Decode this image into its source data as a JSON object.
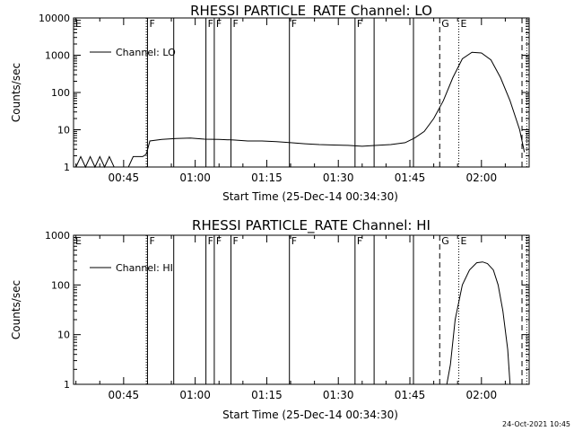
{
  "footer_timestamp": "24-Oct-2021 10:45",
  "colors": {
    "background": "#ffffff",
    "foreground": "#000000"
  },
  "chart_data": [
    {
      "type": "line",
      "title": "RHESSI PARTICLE_RATE Channel: LO",
      "xlabel": "Start Time (25-Dec-14 00:34:30)",
      "ylabel": "Counts/sec",
      "y_scale": "log",
      "ylim": [
        1,
        10000
      ],
      "xlim": [
        "00:34:30",
        "02:10:00"
      ],
      "xticks": [
        "00:45",
        "01:00",
        "01:15",
        "01:30",
        "01:45",
        "02:00"
      ],
      "yticks": [
        "1",
        "10",
        "100",
        "1000",
        "10000"
      ],
      "legend": {
        "label": "Channel: LO",
        "placement": "top-left"
      },
      "flag_lines": [
        {
          "time": "00:34:30",
          "label": "E",
          "style": "dotted"
        },
        {
          "time": "00:49:45",
          "label": "",
          "style": "dotted"
        },
        {
          "time": "00:50:00",
          "label": "F",
          "style": "solid"
        },
        {
          "time": "00:55:30",
          "label": "",
          "style": "solid"
        },
        {
          "time": "01:02:15",
          "label": "F",
          "style": "solid"
        },
        {
          "time": "01:04:00",
          "label": "F",
          "style": "solid"
        },
        {
          "time": "01:07:30",
          "label": "F",
          "style": "solid"
        },
        {
          "time": "01:19:45",
          "label": "F",
          "style": "solid"
        },
        {
          "time": "01:33:30",
          "label": "F",
          "style": "solid"
        },
        {
          "time": "01:37:30",
          "label": "",
          "style": "solid"
        },
        {
          "time": "01:45:45",
          "label": "",
          "style": "solid"
        },
        {
          "time": "01:51:15",
          "label": "G",
          "style": "dashed"
        },
        {
          "time": "01:55:15",
          "label": "E",
          "style": "dotted"
        },
        {
          "time": "02:08:30",
          "label": "",
          "style": "dashed"
        },
        {
          "time": "02:09:30",
          "label": "",
          "style": "dotted"
        }
      ],
      "series": [
        {
          "name": "Channel: LO",
          "x": [
            "00:35:00",
            "00:36:00",
            "00:37:00",
            "00:38:00",
            "00:39:00",
            "00:40:00",
            "00:41:00",
            "00:42:00",
            "00:43:00",
            "00:44:00",
            "00:45:00",
            "00:46:00",
            "00:47:00",
            "00:48:00",
            "00:49:00",
            "00:49:45",
            "00:50:30",
            "00:53:00",
            "00:56:00",
            "00:59:00",
            "01:02:00",
            "01:05:00",
            "01:08:00",
            "01:11:00",
            "01:14:00",
            "01:17:00",
            "01:20:00",
            "01:23:00",
            "01:26:00",
            "01:29:00",
            "01:32:00",
            "01:35:00",
            "01:38:00",
            "01:41:00",
            "01:44:00",
            "01:46:00",
            "01:48:00",
            "01:50:00",
            "01:52:00",
            "01:54:00",
            "01:56:00",
            "01:58:00",
            "02:00:00",
            "02:02:00",
            "02:04:00",
            "02:06:00",
            "02:08:00",
            "02:09:00"
          ],
          "y": [
            1,
            1.9,
            1,
            1.9,
            1,
            1.9,
            1,
            1.9,
            1,
            1,
            1,
            1,
            1.9,
            1.9,
            1.9,
            2.2,
            5,
            5.5,
            5.8,
            6,
            5.6,
            5.5,
            5.3,
            5,
            5,
            4.8,
            4.5,
            4.2,
            4,
            3.9,
            3.8,
            3.6,
            3.8,
            4,
            4.5,
            6,
            9,
            20,
            60,
            250,
            800,
            1200,
            1150,
            750,
            250,
            60,
            10,
            2.5
          ]
        }
      ]
    },
    {
      "type": "line",
      "title": "RHESSI PARTICLE_RATE Channel: HI",
      "xlabel": "Start Time (25-Dec-14 00:34:30)",
      "ylabel": "Counts/sec",
      "y_scale": "log",
      "ylim": [
        1,
        1000
      ],
      "xlim": [
        "00:34:30",
        "02:10:00"
      ],
      "xticks": [
        "00:45",
        "01:00",
        "01:15",
        "01:30",
        "01:45",
        "02:00"
      ],
      "yticks": [
        "1",
        "10",
        "100",
        "1000"
      ],
      "legend": {
        "label": "Channel: HI",
        "placement": "top-left"
      },
      "flag_lines": [
        {
          "time": "00:34:30",
          "label": "E",
          "style": "dotted"
        },
        {
          "time": "00:49:45",
          "label": "",
          "style": "dotted"
        },
        {
          "time": "00:50:00",
          "label": "F",
          "style": "solid"
        },
        {
          "time": "00:55:30",
          "label": "",
          "style": "solid"
        },
        {
          "time": "01:02:15",
          "label": "F",
          "style": "solid"
        },
        {
          "time": "01:04:00",
          "label": "F",
          "style": "solid"
        },
        {
          "time": "01:07:30",
          "label": "F",
          "style": "solid"
        },
        {
          "time": "01:19:45",
          "label": "F",
          "style": "solid"
        },
        {
          "time": "01:33:30",
          "label": "F",
          "style": "solid"
        },
        {
          "time": "01:37:30",
          "label": "",
          "style": "solid"
        },
        {
          "time": "01:45:45",
          "label": "",
          "style": "solid"
        },
        {
          "time": "01:51:15",
          "label": "G",
          "style": "dashed"
        },
        {
          "time": "01:55:15",
          "label": "E",
          "style": "dotted"
        },
        {
          "time": "02:08:30",
          "label": "",
          "style": "dashed"
        },
        {
          "time": "02:09:30",
          "label": "",
          "style": "dotted"
        }
      ],
      "series": [
        {
          "name": "Channel: HI",
          "x": [
            "01:52:45",
            "01:53:30",
            "01:54:30",
            "01:56:00",
            "01:57:30",
            "01:59:00",
            "02:00:15",
            "02:01:15",
            "02:02:30",
            "02:03:30",
            "02:04:30",
            "02:05:30",
            "02:06:00"
          ],
          "y": [
            1,
            2.5,
            20,
            100,
            200,
            280,
            290,
            270,
            200,
            100,
            30,
            5,
            1
          ]
        }
      ]
    }
  ]
}
